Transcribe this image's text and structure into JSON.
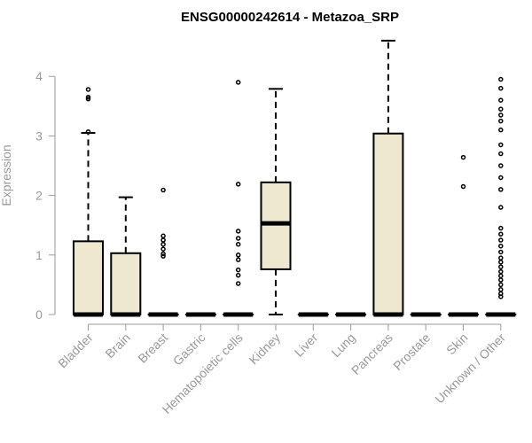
{
  "chart_data": {
    "type": "boxplot",
    "title": "ENSG00000242614 - Metazoa_SRP",
    "xlabel": "",
    "ylabel": "Expression",
    "ylim": [
      0,
      4.6
    ],
    "yticks": [
      0,
      1,
      2,
      3,
      4
    ],
    "box_color": "#ede8cf",
    "stroke_color": "#000000",
    "axis_color": "#999999",
    "categories": [
      "Bladder",
      "Brain",
      "Breast",
      "Gastric",
      "Hematopoietic cells",
      "Kidney",
      "Liver",
      "Lung",
      "Pancreas",
      "Prostate",
      "Skin",
      "Unknown / Other"
    ],
    "boxes": [
      {
        "name": "Bladder",
        "min": 0,
        "q1": 0,
        "median": 0,
        "q3": 1.23,
        "max": 3.05,
        "outliers": [
          3.07,
          3.62,
          3.65,
          3.78
        ]
      },
      {
        "name": "Brain",
        "min": 0,
        "q1": 0,
        "median": 0,
        "q3": 1.03,
        "max": 1.97,
        "outliers": []
      },
      {
        "name": "Breast",
        "min": 0,
        "q1": 0,
        "median": 0,
        "q3": 0,
        "max": 0,
        "outliers": [
          0.98,
          1.02,
          1.1,
          1.18,
          1.25,
          1.32,
          2.09
        ]
      },
      {
        "name": "Gastric",
        "min": 0,
        "q1": 0,
        "median": 0,
        "q3": 0,
        "max": 0,
        "outliers": []
      },
      {
        "name": "Hematopoietic cells",
        "min": 0,
        "q1": 0,
        "median": 0,
        "q3": 0,
        "max": 0,
        "outliers": [
          0.52,
          0.66,
          0.75,
          0.92,
          1.0,
          1.18,
          1.28,
          1.4,
          2.19,
          3.9
        ]
      },
      {
        "name": "Kidney",
        "min": 0,
        "q1": 0.76,
        "median": 1.53,
        "q3": 2.22,
        "max": 3.79,
        "outliers": []
      },
      {
        "name": "Liver",
        "min": 0,
        "q1": 0,
        "median": 0,
        "q3": 0,
        "max": 0,
        "outliers": []
      },
      {
        "name": "Lung",
        "min": 0,
        "q1": 0,
        "median": 0,
        "q3": 0,
        "max": 0,
        "outliers": []
      },
      {
        "name": "Pancreas",
        "min": 0,
        "q1": 0,
        "median": 0,
        "q3": 3.04,
        "max": 4.6,
        "outliers": []
      },
      {
        "name": "Prostate",
        "min": 0,
        "q1": 0,
        "median": 0,
        "q3": 0,
        "max": 0,
        "outliers": []
      },
      {
        "name": "Skin",
        "min": 0,
        "q1": 0,
        "median": 0,
        "q3": 0,
        "max": 0,
        "outliers": [
          2.15,
          2.64
        ]
      },
      {
        "name": "Unknown / Other",
        "min": 0,
        "q1": 0,
        "median": 0,
        "q3": 0,
        "max": 0,
        "outliers": [
          0.3,
          0.35,
          0.42,
          0.5,
          0.58,
          0.65,
          0.72,
          0.8,
          0.88,
          0.95,
          1.05,
          1.15,
          1.25,
          1.35,
          1.45,
          1.8,
          2.1,
          2.3,
          2.5,
          2.7,
          2.85,
          3.1,
          3.25,
          3.35,
          3.45,
          3.6,
          3.8,
          3.95
        ]
      }
    ]
  }
}
